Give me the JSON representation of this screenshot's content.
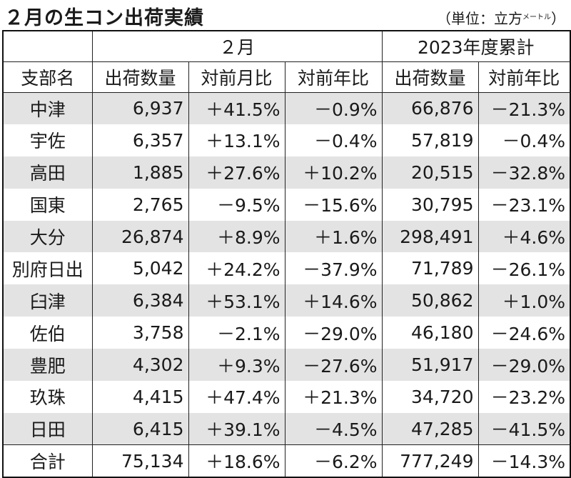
{
  "title": "２月の生コン出荷実績",
  "unit": {
    "prefix": "（単位：立方",
    "small": "メートル",
    "suffix": "）"
  },
  "headers": {
    "group_month": "２月",
    "group_year": "2023年度累計",
    "branch": "支部名",
    "shipment": "出荷数量",
    "mom": "対前月比",
    "yoy": "対前年比",
    "ytd_shipment": "出荷数量",
    "ytd_yoy": "対前年比"
  },
  "rows": [
    {
      "name": "中津",
      "qty": "6,937",
      "mom": "＋41.5%",
      "yoy": "－0.9%",
      "ytd": "66,876",
      "ytd_yoy": "－21.3%"
    },
    {
      "name": "宇佐",
      "qty": "6,357",
      "mom": "＋13.1%",
      "yoy": "－0.4%",
      "ytd": "57,819",
      "ytd_yoy": "－0.4%"
    },
    {
      "name": "高田",
      "qty": "1,885",
      "mom": "＋27.6%",
      "yoy": "＋10.2%",
      "ytd": "20,515",
      "ytd_yoy": "－32.8%"
    },
    {
      "name": "国東",
      "qty": "2,765",
      "mom": "－9.5%",
      "yoy": "－15.6%",
      "ytd": "30,795",
      "ytd_yoy": "－23.1%"
    },
    {
      "name": "大分",
      "qty": "26,874",
      "mom": "＋8.9%",
      "yoy": "＋1.6%",
      "ytd": "298,491",
      "ytd_yoy": "＋4.6%"
    },
    {
      "name": "別府日出",
      "qty": "5,042",
      "mom": "＋24.2%",
      "yoy": "－37.9%",
      "ytd": "71,789",
      "ytd_yoy": "－26.1%"
    },
    {
      "name": "臼津",
      "qty": "6,384",
      "mom": "＋53.1%",
      "yoy": "＋14.6%",
      "ytd": "50,862",
      "ytd_yoy": "＋1.0%"
    },
    {
      "name": "佐伯",
      "qty": "3,758",
      "mom": "－2.1%",
      "yoy": "－29.0%",
      "ytd": "46,180",
      "ytd_yoy": "－24.6%"
    },
    {
      "name": "豊肥",
      "qty": "4,302",
      "mom": "＋9.3%",
      "yoy": "－27.6%",
      "ytd": "51,917",
      "ytd_yoy": "－29.0%"
    },
    {
      "name": "玖珠",
      "qty": "4,415",
      "mom": "＋47.4%",
      "yoy": "＋21.3%",
      "ytd": "34,720",
      "ytd_yoy": "－23.2%"
    },
    {
      "name": "日田",
      "qty": "6,415",
      "mom": "＋39.1%",
      "yoy": "－4.5%",
      "ytd": "47,285",
      "ytd_yoy": "－41.5%"
    }
  ],
  "total": {
    "name": "合計",
    "qty": "75,134",
    "mom": "＋18.6%",
    "yoy": "－6.2%",
    "ytd": "777,249",
    "ytd_yoy": "－14.3%"
  }
}
